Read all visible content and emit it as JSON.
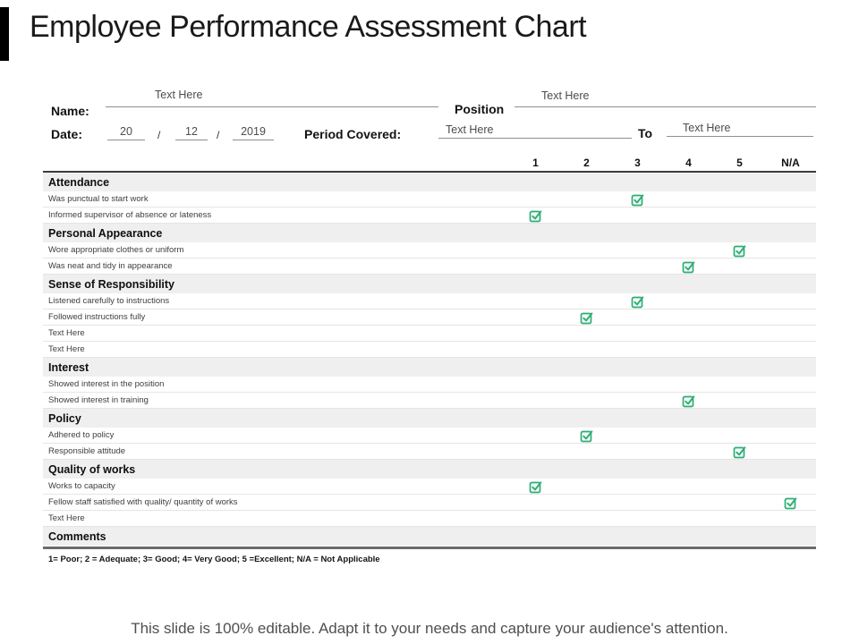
{
  "slide": {
    "title": "Employee Performance Assessment Chart",
    "footer_note": "This slide is 100% editable. Adapt it to your needs and capture your audience's attention."
  },
  "form": {
    "name_label": "Name:",
    "name_value": "Text Here",
    "position_label": "Position",
    "position_value": "Text Here",
    "date_label": "Date:",
    "date_day": "20",
    "date_month": "12",
    "date_year": "2019",
    "date_separator": "/",
    "period_covered_label": "Period Covered:",
    "period_from_value": "Text Here",
    "to_label": "To",
    "period_to_value": "Text Here"
  },
  "table": {
    "rating_columns": [
      "1",
      "2",
      "3",
      "4",
      "5",
      "N/A"
    ],
    "sections": [
      {
        "title": "Attendance",
        "rows": [
          {
            "label": "Was punctual to start work",
            "check": "3"
          },
          {
            "label": "Informed supervisor of absence or lateness",
            "check": "1"
          }
        ]
      },
      {
        "title": "Personal Appearance",
        "rows": [
          {
            "label": "Wore appropriate clothes or uniform",
            "check": "5"
          },
          {
            "label": "Was neat and tidy in appearance",
            "check": "4"
          }
        ]
      },
      {
        "title": "Sense of Responsibility",
        "rows": [
          {
            "label": "Listened carefully to instructions",
            "check": "3"
          },
          {
            "label": "Followed instructions fully",
            "check": "2"
          },
          {
            "label": "Text Here",
            "check": null
          },
          {
            "label": "Text Here",
            "check": null
          }
        ]
      },
      {
        "title": "Interest",
        "rows": [
          {
            "label": "Showed interest in the position",
            "check": null
          },
          {
            "label": "Showed interest in training",
            "check": "4"
          }
        ]
      },
      {
        "title": "Policy",
        "rows": [
          {
            "label": "Adhered to policy",
            "check": "2"
          },
          {
            "label": "Responsible attitude",
            "check": "5"
          }
        ]
      },
      {
        "title": "Quality of works",
        "rows": [
          {
            "label": "Works to capacity",
            "check": "1"
          },
          {
            "label": "Fellow staff satisfied with quality/ quantity of works",
            "check": "N/A"
          },
          {
            "label": "Text Here",
            "check": null
          }
        ]
      },
      {
        "title": "Comments",
        "rows": []
      }
    ],
    "legend": "1= Poor;  2 = Adequate;  3= Good;  4= Very Good;  5 =Excellent; N/A = Not Applicable"
  },
  "colors": {
    "check_green": "#2FAD76",
    "section_header_bg": "#EFEFEF",
    "accent_bar": "#000000",
    "header_line_dark": "#3D3D3D"
  }
}
